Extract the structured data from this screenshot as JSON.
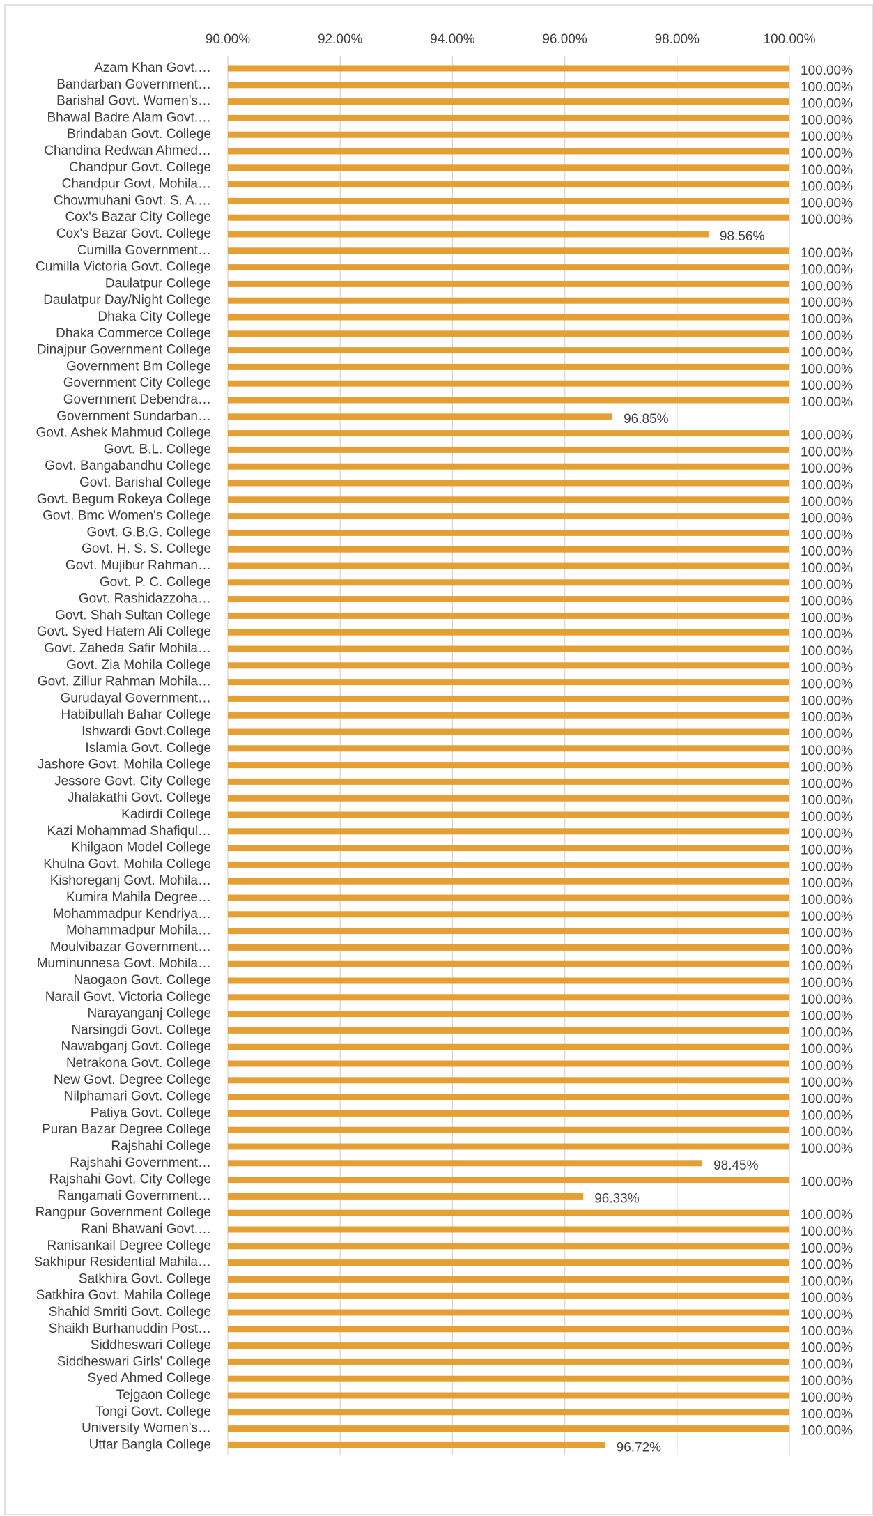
{
  "chart_data": {
    "type": "barh",
    "orientation": "horizontal",
    "color": "#e5a035",
    "grid": true,
    "xlim": [
      90,
      100
    ],
    "xticks": [
      {
        "value": 90,
        "label": "90.00%"
      },
      {
        "value": 92,
        "label": "92.00%"
      },
      {
        "value": 94,
        "label": "94.00%"
      },
      {
        "value": 96,
        "label": "96.00%"
      },
      {
        "value": 98,
        "label": "98.00%"
      },
      {
        "value": 100,
        "label": "100.00%"
      }
    ],
    "categories": [
      "Azam Khan Govt.…",
      "Bandarban Government…",
      "Barishal Govt. Women's…",
      "Bhawal Badre Alam Govt.…",
      "Brindaban Govt. College",
      "Chandina Redwan Ahmed…",
      "Chandpur Govt. College",
      "Chandpur Govt. Mohila…",
      "Chowmuhani Govt. S. A.…",
      "Cox's Bazar City College",
      "Cox's Bazar Govt. College",
      "Cumilla Government…",
      "Cumilla Victoria Govt. College",
      "Daulatpur College",
      "Daulatpur Day/Night College",
      "Dhaka City College",
      "Dhaka Commerce College",
      "Dinajpur Government College",
      "Government Bm College",
      "Government City College",
      "Government Debendra…",
      "Government Sundarban…",
      "Govt. Ashek Mahmud College",
      "Govt. B.L. College",
      "Govt. Bangabandhu College",
      "Govt. Barishal College",
      "Govt. Begum Rokeya College",
      "Govt. Bmc Women's College",
      "Govt. G.B.G. College",
      "Govt. H. S. S. College",
      "Govt. Mujibur Rahman…",
      "Govt. P. C. College",
      "Govt. Rashidazzoha…",
      "Govt. Shah Sultan College",
      "Govt. Syed Hatem Ali College",
      "Govt. Zaheda Safir Mohila…",
      "Govt. Zia Mohila College",
      "Govt. Zillur Rahman Mohila…",
      "Gurudayal Government…",
      "Habibullah Bahar College",
      "Ishwardi Govt.College",
      "Islamia Govt. College",
      "Jashore Govt. Mohila College",
      "Jessore Govt. City College",
      "Jhalakathi Govt. College",
      "Kadirdi College",
      "Kazi Mohammad Shafiqul…",
      "Khilgaon Model College",
      "Khulna Govt. Mohila College",
      "Kishoreganj Govt. Mohila…",
      "Kumira Mahila Degree…",
      "Mohammadpur Kendriya…",
      "Mohammadpur Mohila…",
      "Moulvibazar Government…",
      "Muminunnesa Govt. Mohila…",
      "Naogaon Govt. College",
      "Narail Govt. Victoria College",
      "Narayanganj College",
      "Narsingdi Govt. College",
      "Nawabganj Govt. College",
      "Netrakona Govt. College",
      "New Govt. Degree College",
      "Nilphamari Govt. College",
      "Patiya Govt. College",
      "Puran Bazar Degree College",
      "Rajshahi College",
      "Rajshahi Government…",
      "Rajshahi Govt. City College",
      "Rangamati Government…",
      "Rangpur Government College",
      "Rani Bhawani Govt.…",
      "Ranisankail Degree College",
      "Sakhipur Residential Mahila…",
      "Satkhira Govt. College",
      "Satkhira Govt. Mahila College",
      "Shahid Smriti Govt. College",
      "Shaikh Burhanuddin Post…",
      "Siddheswari College",
      "Siddheswari Girls' College",
      "Syed Ahmed College",
      "Tejgaon College",
      "Tongi Govt. College",
      "University Women's…",
      "Uttar Bangla College"
    ],
    "values": [
      100,
      100,
      100,
      100,
      100,
      100,
      100,
      100,
      100,
      100,
      98.56,
      100,
      100,
      100,
      100,
      100,
      100,
      100,
      100,
      100,
      100,
      96.85,
      100,
      100,
      100,
      100,
      100,
      100,
      100,
      100,
      100,
      100,
      100,
      100,
      100,
      100,
      100,
      100,
      100,
      100,
      100,
      100,
      100,
      100,
      100,
      100,
      100,
      100,
      100,
      100,
      100,
      100,
      100,
      100,
      100,
      100,
      100,
      100,
      100,
      100,
      100,
      100,
      100,
      100,
      100,
      100,
      98.45,
      100,
      96.33,
      100,
      100,
      100,
      100,
      100,
      100,
      100,
      100,
      100,
      100,
      100,
      100,
      100,
      100,
      96.72
    ],
    "value_labels": [
      "100.00%",
      "100.00%",
      "100.00%",
      "100.00%",
      "100.00%",
      "100.00%",
      "100.00%",
      "100.00%",
      "100.00%",
      "100.00%",
      "98.56%",
      "100.00%",
      "100.00%",
      "100.00%",
      "100.00%",
      "100.00%",
      "100.00%",
      "100.00%",
      "100.00%",
      "100.00%",
      "100.00%",
      "96.85%",
      "100.00%",
      "100.00%",
      "100.00%",
      "100.00%",
      "100.00%",
      "100.00%",
      "100.00%",
      "100.00%",
      "100.00%",
      "100.00%",
      "100.00%",
      "100.00%",
      "100.00%",
      "100.00%",
      "100.00%",
      "100.00%",
      "100.00%",
      "100.00%",
      "100.00%",
      "100.00%",
      "100.00%",
      "100.00%",
      "100.00%",
      "100.00%",
      "100.00%",
      "100.00%",
      "100.00%",
      "100.00%",
      "100.00%",
      "100.00%",
      "100.00%",
      "100.00%",
      "100.00%",
      "100.00%",
      "100.00%",
      "100.00%",
      "100.00%",
      "100.00%",
      "100.00%",
      "100.00%",
      "100.00%",
      "100.00%",
      "100.00%",
      "100.00%",
      "98.45%",
      "100.00%",
      "96.33%",
      "100.00%",
      "100.00%",
      "100.00%",
      "100.00%",
      "100.00%",
      "100.00%",
      "100.00%",
      "100.00%",
      "100.00%",
      "100.00%",
      "100.00%",
      "100.00%",
      "100.00%",
      "100.00%",
      "96.72%"
    ]
  }
}
